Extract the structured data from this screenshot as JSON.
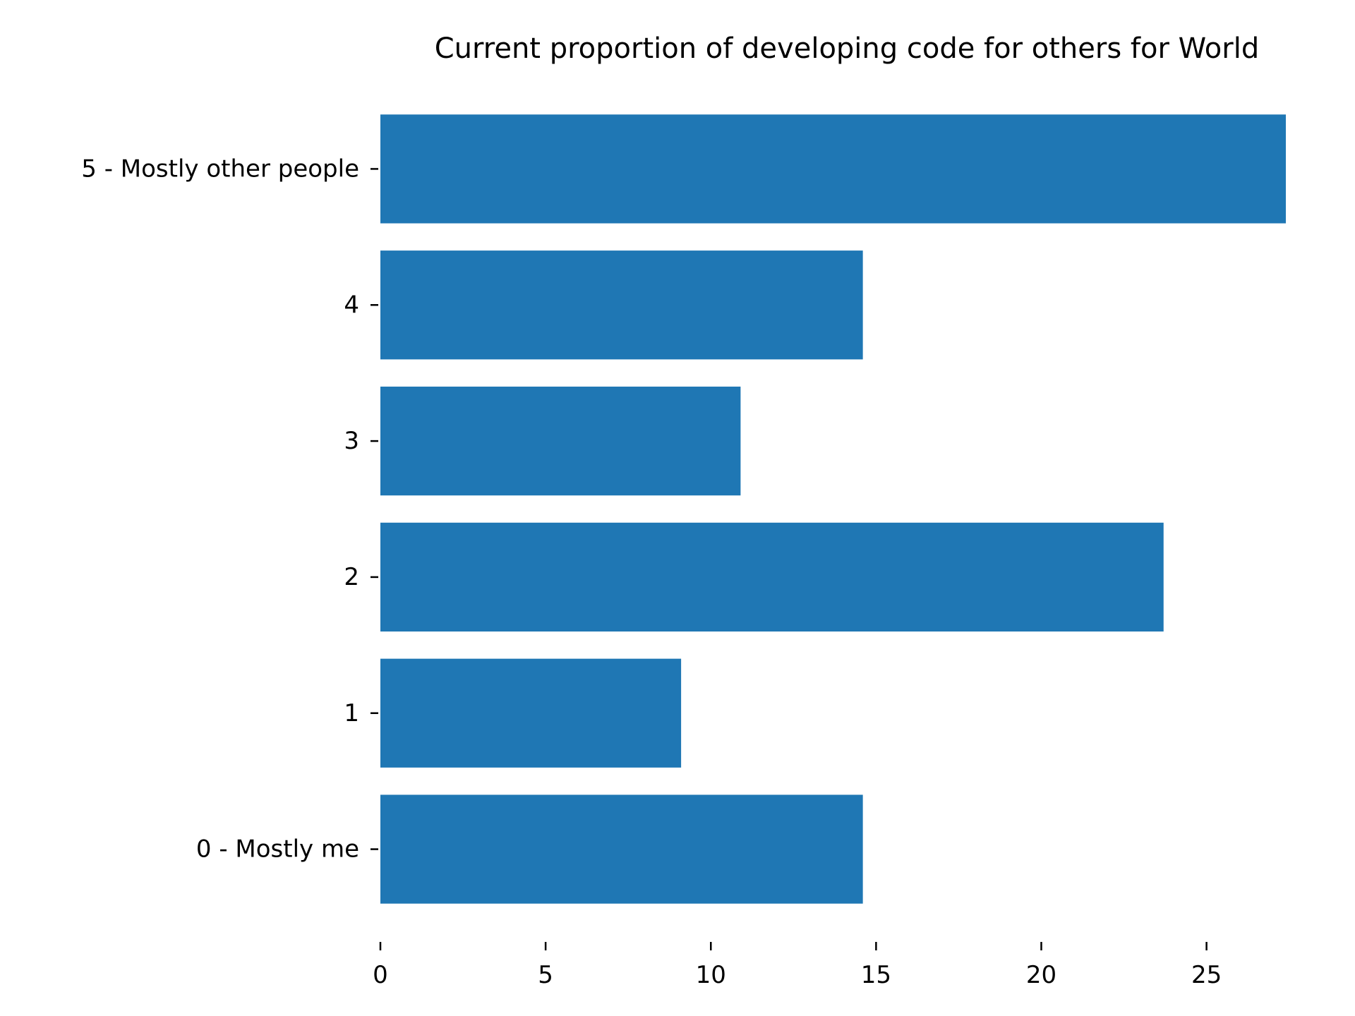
{
  "chart_data": {
    "type": "bar",
    "orientation": "horizontal",
    "title": "Current proportion of developing code for others for World",
    "xlabel": "",
    "ylabel": "",
    "categories": [
      "0 - Mostly me",
      "1",
      "2",
      "3",
      "4",
      "5 - Mostly other people"
    ],
    "values": [
      14.6,
      9.1,
      23.7,
      10.9,
      14.6,
      27.4
    ],
    "xlim": [
      0,
      27.4
    ],
    "xticks": [
      "0",
      "5",
      "10",
      "15",
      "20",
      "25"
    ],
    "grid": false,
    "legend": "none",
    "bar_color": "#1f77b4"
  }
}
